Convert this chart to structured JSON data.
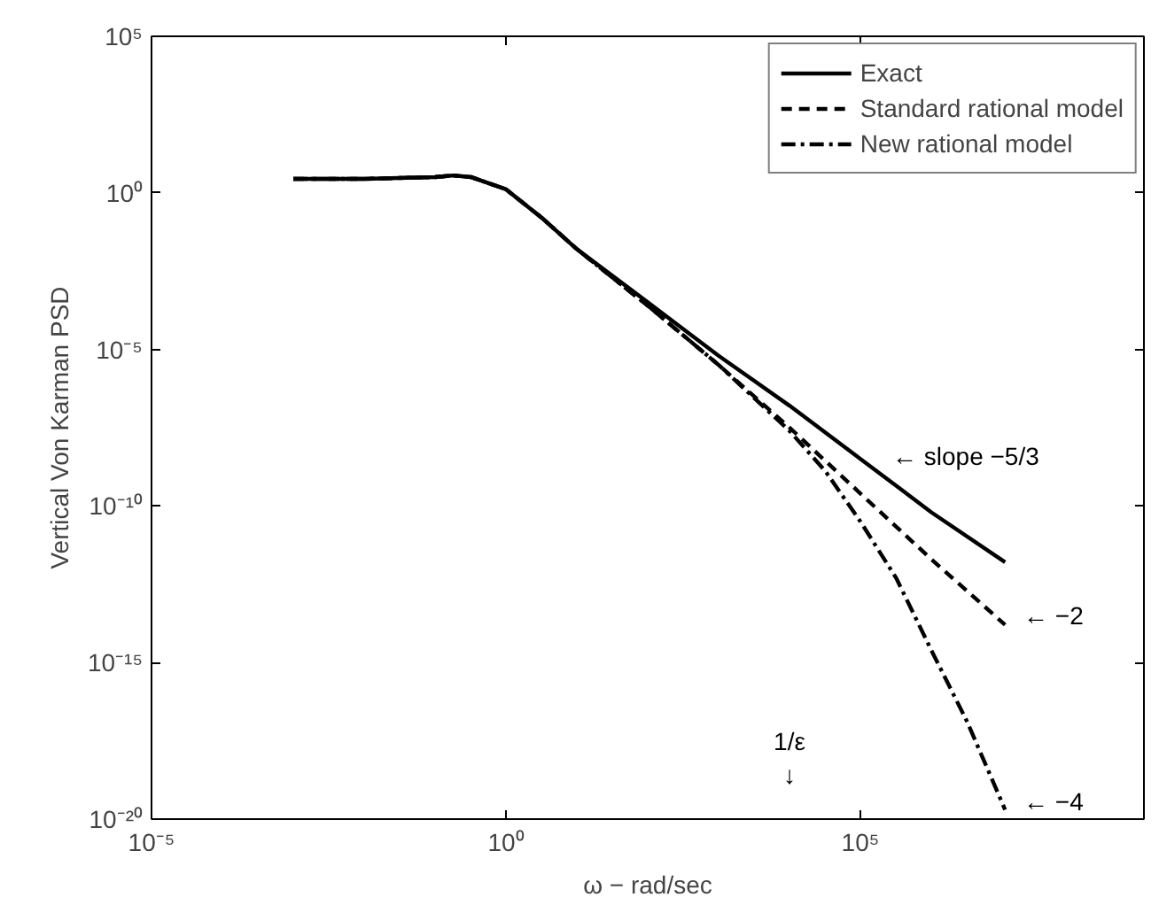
{
  "chart_data": {
    "type": "line",
    "xlabel": "ω − rad/sec",
    "ylabel": "Vertical Von Karman PSD",
    "log": "xy",
    "xlim": [
      1e-05,
      1000000000.0
    ],
    "ylim": [
      1e-20,
      100000.0
    ],
    "xticks": [
      {
        "value": 1e-05,
        "label": "10⁻⁵"
      },
      {
        "value": 1,
        "label": "10⁰"
      },
      {
        "value": 100000.0,
        "label": "10⁵"
      }
    ],
    "yticks": [
      {
        "value": 1e-20,
        "label": "10⁻²⁰"
      },
      {
        "value": 1e-15,
        "label": "10⁻¹⁵"
      },
      {
        "value": 1e-10,
        "label": "10⁻¹⁰"
      },
      {
        "value": 1e-05,
        "label": "10⁻⁵"
      },
      {
        "value": 1,
        "label": "10⁰"
      },
      {
        "value": 100000.0,
        "label": "10⁵"
      }
    ],
    "grid": false,
    "legend": "top right",
    "series": [
      {
        "name": "Exact",
        "color": "#000000",
        "line_style": "solid",
        "x": [
          0.001,
          0.01,
          0.1,
          0.18,
          0.32,
          1,
          3.2,
          10,
          100,
          1000.0,
          10000.0,
          100000.0,
          1000000.0,
          11000000.0
        ],
        "values": [
          2.8,
          2.8,
          3.2,
          3.6,
          3.2,
          1.3,
          0.16,
          0.016,
          0.00032,
          6.3e-06,
          1.6e-07,
          3.2e-09,
          6.3e-11,
          1.6e-12
        ]
      },
      {
        "name": "Standard rational model",
        "color": "#000000",
        "line_style": "dashed",
        "x": [
          0.001,
          0.01,
          0.1,
          0.18,
          0.32,
          1,
          3.2,
          10,
          100,
          1000.0,
          10000.0,
          100000.0,
          1000000.0,
          11000000.0
        ],
        "values": [
          2.8,
          2.8,
          3.2,
          3.6,
          3.2,
          1.3,
          0.16,
          0.016,
          0.00025,
          3.2e-06,
          3.2e-08,
          2.5e-10,
          2e-12,
          1.6e-14
        ]
      },
      {
        "name": "New rational model",
        "color": "#000000",
        "line_style": "dashdot",
        "x": [
          0.001,
          0.01,
          0.1,
          0.18,
          0.32,
          1,
          3.2,
          10,
          100,
          1000.0,
          10000.0,
          32000.0,
          100000.0,
          320000.0,
          1000000.0,
          3200000.0,
          11000000.0
        ],
        "values": [
          2.8,
          2.8,
          3.2,
          3.6,
          3.2,
          1.3,
          0.16,
          0.016,
          0.00025,
          3.2e-06,
          2.5e-08,
          1.3e-09,
          3.2e-11,
          5e-13,
          2.5e-15,
          1.3e-17,
          2e-20
        ]
      }
    ],
    "annotations": [
      "← slope −5/3",
      "← −2",
      "← −4",
      "1/ε",
      "↓"
    ]
  }
}
